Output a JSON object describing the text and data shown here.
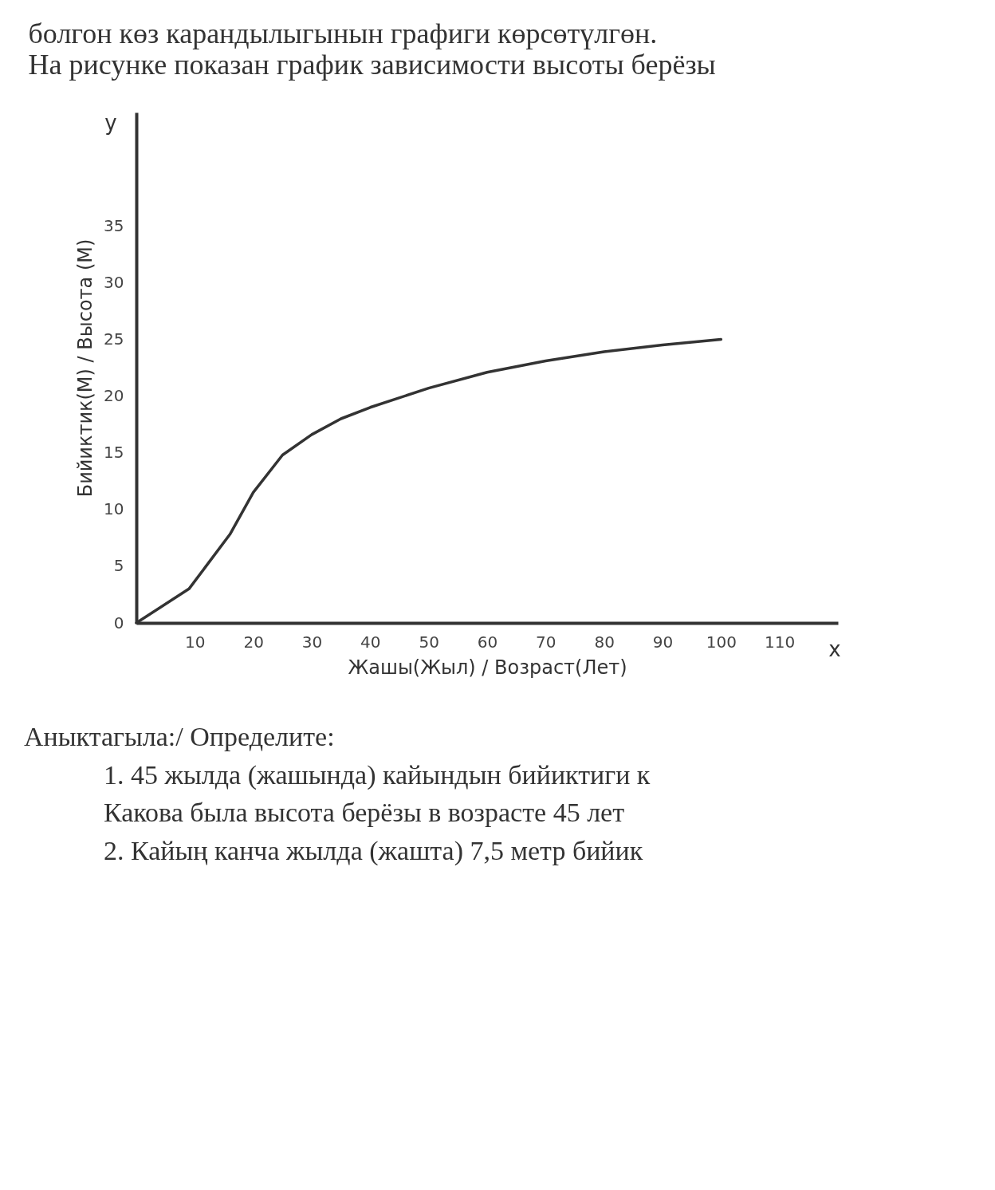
{
  "chart_data": {
    "type": "line",
    "title": "болгон көз карандылыгынын графиги көрсөтүлгөн.",
    "subtitle": "На рисунке показан график зависимости высоты берёзы",
    "xlabel": "Жашы(Жыл) / Возраст(Лет)",
    "ylabel": "Бийиктик(М) / Высота (М)",
    "x": [
      0,
      9,
      16,
      20,
      25,
      30,
      35,
      40,
      50,
      60,
      70,
      80,
      90,
      100
    ],
    "series": [
      {
        "color": "#333333",
        "values": [
          0,
          3,
          7.8,
          11.5,
          14.8,
          16.6,
          18,
          19,
          20.7,
          22.1,
          23.1,
          23.9,
          24.5,
          25
        ]
      }
    ],
    "xlim": [
      0,
      120
    ],
    "ylim": [
      0,
      45
    ],
    "xticks": [
      10,
      20,
      30,
      40,
      50,
      60,
      70,
      80,
      90,
      100,
      110
    ],
    "yticks": [
      0,
      5,
      10,
      15,
      20,
      25,
      30,
      35
    ],
    "grid": false,
    "legend": false,
    "marker": "none",
    "line_style": "solid",
    "annotations": [
      "x",
      "y",
      "Аныктагыла:/ Определите:",
      "1. 45 жылда (жашында) кайындын бийиктиги к",
      "Какова была высота берёзы в возрасте 45 лет",
      "2. Кайың канча жылда (жашта) 7,5 метр бийик"
    ]
  }
}
